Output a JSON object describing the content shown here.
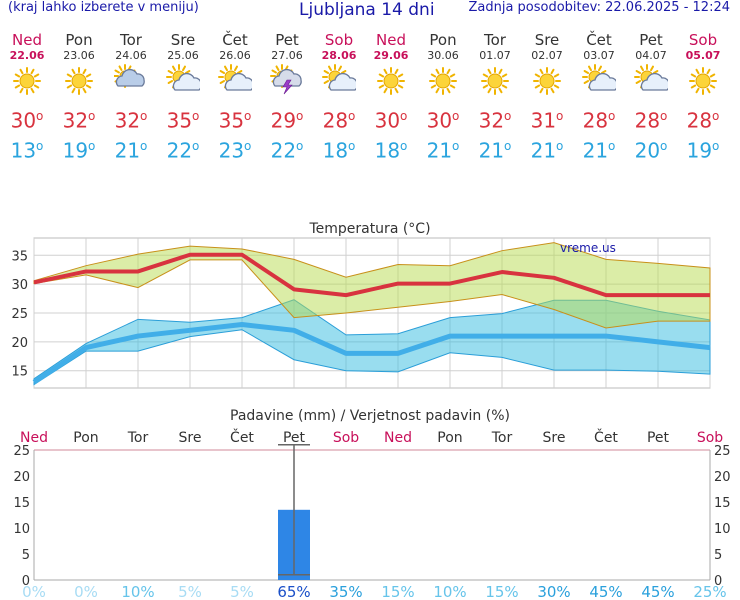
{
  "header": {
    "left": "(kraj lahko izberete v meniju)",
    "title": "Ljubljana 14 dni",
    "right": "Zadnja posodobitev: 22.06.2025 - 12:24"
  },
  "days": [
    {
      "name": "Ned",
      "date": "22.06",
      "weekend": true,
      "icon": "sun-icon",
      "tmax": "30",
      "tmin": "13"
    },
    {
      "name": "Pon",
      "date": "23.06",
      "weekend": false,
      "icon": "sun-icon",
      "tmax": "32",
      "tmin": "19"
    },
    {
      "name": "Tor",
      "date": "24.06",
      "weekend": false,
      "icon": "partly-cloudy-icon",
      "tmax": "32",
      "tmin": "21"
    },
    {
      "name": "Sre",
      "date": "25.06",
      "weekend": false,
      "icon": "sun-cloud-icon",
      "tmax": "35",
      "tmin": "22"
    },
    {
      "name": "Čet",
      "date": "26.06",
      "weekend": false,
      "icon": "sun-cloud-icon",
      "tmax": "35",
      "tmin": "23"
    },
    {
      "name": "Pet",
      "date": "27.06",
      "weekend": false,
      "icon": "thunderstorm-icon",
      "tmax": "29",
      "tmin": "22"
    },
    {
      "name": "Sob",
      "date": "28.06",
      "weekend": true,
      "icon": "sun-cloud-icon",
      "tmax": "28",
      "tmin": "18"
    },
    {
      "name": "Ned",
      "date": "29.06",
      "weekend": true,
      "icon": "sun-icon",
      "tmax": "30",
      "tmin": "18"
    },
    {
      "name": "Pon",
      "date": "30.06",
      "weekend": false,
      "icon": "sun-icon",
      "tmax": "30",
      "tmin": "21"
    },
    {
      "name": "Tor",
      "date": "01.07",
      "weekend": false,
      "icon": "sun-icon",
      "tmax": "32",
      "tmin": "21"
    },
    {
      "name": "Sre",
      "date": "02.07",
      "weekend": false,
      "icon": "sun-icon",
      "tmax": "31",
      "tmin": "21"
    },
    {
      "name": "Čet",
      "date": "03.07",
      "weekend": false,
      "icon": "sun-cloud-icon",
      "tmax": "28",
      "tmin": "21"
    },
    {
      "name": "Pet",
      "date": "04.07",
      "weekend": false,
      "icon": "sun-cloud-icon",
      "tmax": "28",
      "tmin": "20"
    },
    {
      "name": "Sob",
      "date": "05.07",
      "weekend": true,
      "icon": "sun-icon",
      "tmax": "28",
      "tmin": "19"
    }
  ],
  "chart_data": [
    {
      "type": "line",
      "title": "Temperatura (°C)",
      "watermark": "vreme.us",
      "categories": [
        "22.06",
        "23.06",
        "24.06",
        "25.06",
        "26.06",
        "27.06",
        "28.06",
        "29.06",
        "30.06",
        "01.07",
        "02.07",
        "03.07",
        "04.07",
        "05.07"
      ],
      "yticks": [
        15,
        20,
        25,
        30,
        35
      ],
      "ylim": [
        12,
        38
      ],
      "grid": true,
      "series": [
        {
          "values": [
            30.3,
            32.2,
            32.2,
            35.1,
            35.1,
            29.1,
            28.1,
            30.1,
            30.1,
            32.1,
            31.1,
            28.1,
            28.1,
            28.1
          ]
        },
        {
          "values": [
            30.6,
            33.2,
            35.2,
            36.6,
            36.1,
            34.3,
            31.2,
            33.4,
            33.2,
            35.8,
            37.2,
            34.3,
            33.6,
            32.8
          ]
        },
        {
          "values": [
            30.1,
            31.6,
            29.4,
            34.2,
            34.2,
            24.2,
            25.0,
            26.0,
            27.0,
            28.2,
            25.6,
            22.4,
            23.6,
            23.6
          ]
        },
        {
          "values": [
            13.0,
            19.0,
            21.0,
            22.0,
            23.0,
            22.0,
            18.0,
            18.0,
            21.0,
            21.0,
            21.0,
            21.0,
            20.0,
            19.0
          ]
        },
        {
          "values": [
            13.6,
            19.7,
            23.9,
            23.4,
            24.2,
            27.3,
            21.2,
            21.4,
            24.2,
            24.9,
            27.2,
            27.2,
            25.3,
            23.8
          ]
        },
        {
          "values": [
            12.6,
            18.4,
            18.4,
            20.9,
            22.1,
            16.9,
            15.0,
            14.8,
            18.1,
            17.3,
            15.1,
            15.1,
            14.9,
            14.4
          ]
        }
      ]
    },
    {
      "type": "bar",
      "title": "Padavine (mm) / Verjetnost padavin (%)",
      "categories": [
        "Ned",
        "Pon",
        "Tor",
        "Sre",
        "Čet",
        "Pet",
        "Sob",
        "Ned",
        "Pon",
        "Tor",
        "Sre",
        "Čet",
        "Pet",
        "Sob"
      ],
      "yticks": [
        0,
        5,
        10,
        15,
        20,
        25
      ],
      "ylim": [
        0,
        25
      ],
      "values": [
        0,
        0,
        0,
        0,
        0,
        13.5,
        0,
        0,
        0,
        0,
        0,
        0,
        0,
        0
      ],
      "error_high": [
        null,
        null,
        null,
        null,
        null,
        26,
        null,
        null,
        null,
        null,
        null,
        null,
        null,
        null
      ],
      "error_low": [
        null,
        null,
        null,
        null,
        null,
        1,
        null,
        null,
        null,
        null,
        null,
        null,
        null,
        null
      ],
      "probability": [
        "0%",
        "0%",
        "10%",
        "5%",
        "5%",
        "65%",
        "35%",
        "15%",
        "10%",
        "15%",
        "30%",
        "45%",
        "45%",
        "25%"
      ]
    }
  ],
  "colors": {
    "header_text": "#1a1aa8",
    "weekend": "#c8105a",
    "max_line": "#d8333f",
    "min_line": "#41aee8",
    "max_band": "#b8dc50",
    "min_band": "#34bce0",
    "precip_bar": "#2e86e6",
    "grid": "#d0d0d0"
  }
}
